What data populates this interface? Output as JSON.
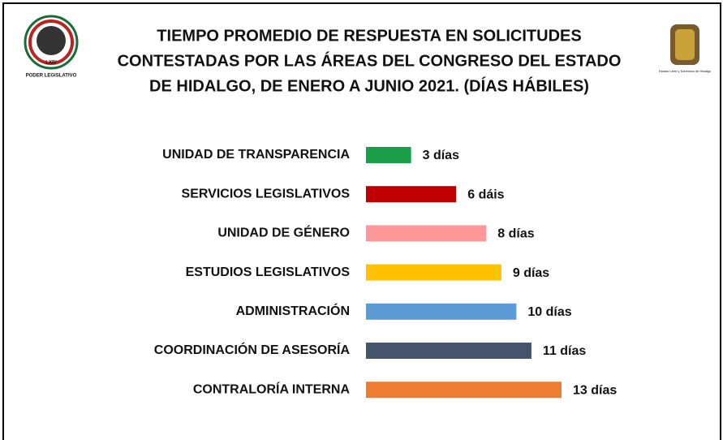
{
  "header": {
    "left_logo_text": "PODER LEGISLATIVO",
    "left_logo_mark": "LXIV",
    "right_logo_text": "Estado Libre y Soberano de Hidalgo"
  },
  "chart_data": {
    "type": "barh",
    "title": [
      "TIEMPO PROMEDIO DE RESPUESTA EN SOLICITUDES",
      "CONTESTADAS POR LAS ÁREAS DEL CONGRESO DEL ESTADO",
      "DE HIDALGO, DE ENERO A JUNIO 2021. (DÍAS HÁBILES)"
    ],
    "categories": [
      "UNIDAD DE TRANSPARENCIA",
      "SERVICIOS LEGISLATIVOS",
      "UNIDAD DE GÉNERO",
      "ESTUDIOS LEGISLATIVOS",
      "ADMINISTRACIÓN",
      "COORDINACIÓN DE ASESORÍA",
      "CONTRALORÍA INTERNA"
    ],
    "values": [
      3,
      6,
      8,
      9,
      10,
      11,
      13
    ],
    "value_labels": [
      "3 días",
      "6 dáis",
      "8 días",
      "9 días",
      "10 días",
      "11 días",
      "13 días"
    ],
    "colors": [
      "#1a9e4a",
      "#c00000",
      "#ff9999",
      "#ffc000",
      "#5b9bd5",
      "#44546a",
      "#ed7d31"
    ]
  }
}
